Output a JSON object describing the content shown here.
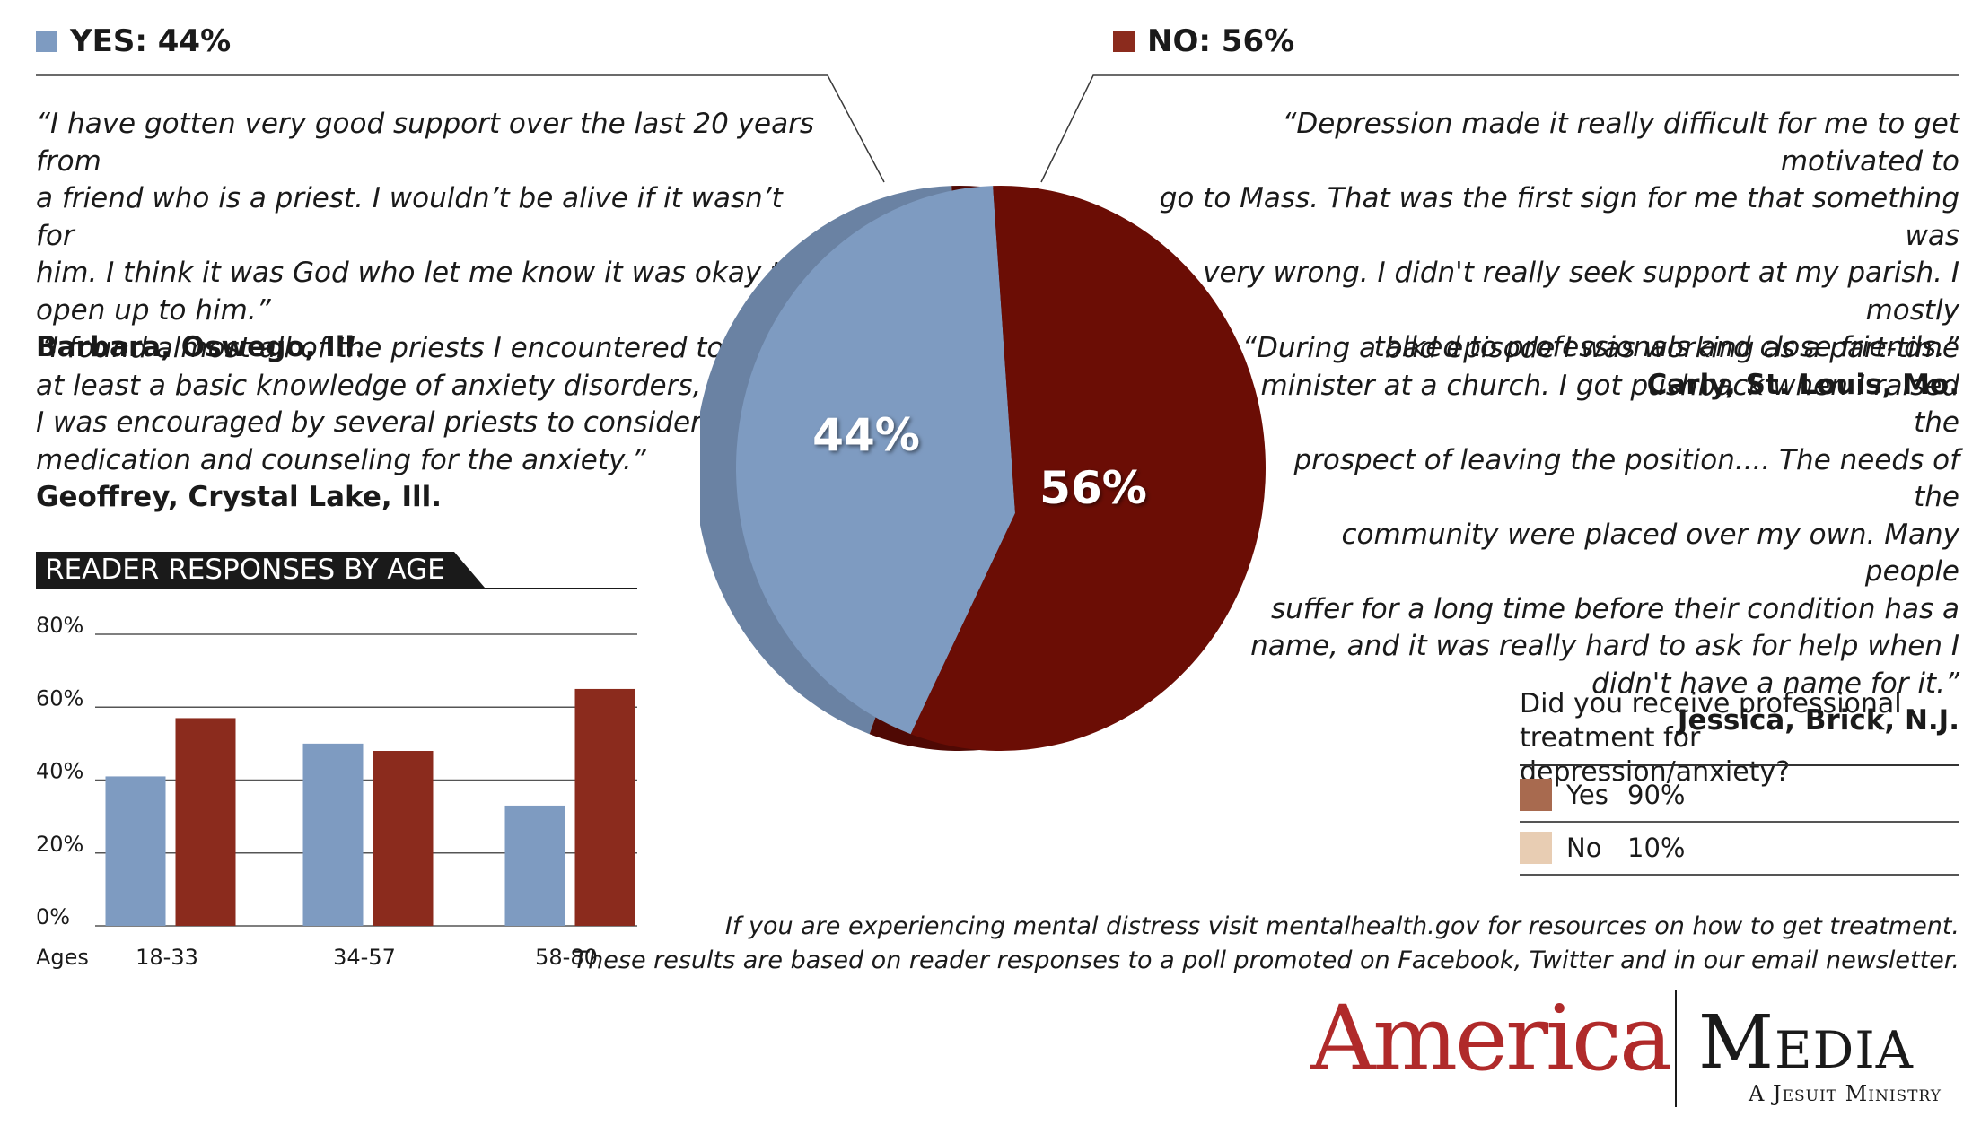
{
  "legend": {
    "yes": {
      "label": "YES: 44%",
      "color": "#7e9bc1"
    },
    "no": {
      "label": "NO: 56%",
      "color": "#8b2b1d"
    }
  },
  "quotes": [
    {
      "lines": [
        "“I have gotten very good support over the last 20 years from",
        "a friend who is a priest. I wouldn’t be alive if it wasn’t for",
        "him. I think it was God who let me know it was okay to",
        "open up to him.”"
      ],
      "author": "Barbara, Oswego, Ill."
    },
    {
      "lines": [
        "“I found almost all of the priests I encountered to have",
        "at least a basic knowledge of anxiety disorders, and",
        "I was encouraged by several priests to consider",
        "medication and counseling for the anxiety.”"
      ],
      "author": "Geoffrey, Crystal Lake, Ill."
    },
    {
      "lines": [
        "“Depression made it really difficult for me to get motivated to",
        "go to Mass. That was the first sign for me that something was",
        "very wrong. I didn't really seek support at my parish. I mostly",
        "talked to professionals and close friends.”"
      ],
      "author": "Carly, St. Louis, Mo."
    },
    {
      "lines": [
        "“During a bad episode I was working as a part-time",
        "minister at a church. I got pushback when I raised the",
        "prospect of leaving the position.... The needs of the",
        "community were placed over my own. Many people",
        "suffer for a long time before their condition has a",
        "name, and it was really hard to ask for help when I",
        "didn't have a name for it.”"
      ],
      "author": "Jessica, Brick, N.J."
    }
  ],
  "chart_data": [
    {
      "type": "pie",
      "labels": [
        "YES",
        "NO"
      ],
      "values": [
        44,
        56
      ],
      "value_labels": [
        "44%",
        "56%"
      ],
      "colors": [
        "#7e9bc1",
        "#6b0d05"
      ]
    },
    {
      "type": "bar",
      "title": "READER RESPONSES BY AGE",
      "xlabel": "Ages",
      "categories": [
        "18-33",
        "34-57",
        "58-80"
      ],
      "series": [
        {
          "values": [
            41,
            50,
            33
          ],
          "color": "#7e9bc1"
        },
        {
          "values": [
            57,
            48,
            65
          ],
          "color": "#8b2b1d"
        }
      ],
      "ylim": [
        0,
        80
      ],
      "yticks": [
        0,
        20,
        40,
        60,
        80
      ],
      "ytick_labels": [
        "0%",
        "20%",
        "40%",
        "60%",
        "80%"
      ],
      "grid": true
    }
  ],
  "professional": {
    "question_line1": "Did you receive professional",
    "question_line2": "treatment for depression/anxiety?",
    "rows": [
      {
        "label": "Yes",
        "value": "90%",
        "color": "#a86a4f"
      },
      {
        "label": "No",
        "value": "10%",
        "color": "#e8cdb3"
      }
    ]
  },
  "footer": {
    "line1": "If you are experiencing mental distress visit mentalhealth.gov for resources on how to get treatment.",
    "line2": "These results are based on reader responses to a poll promoted on Facebook, Twitter and in our email newsletter."
  },
  "brand": {
    "america": "America",
    "media": "Media",
    "tagline": "A Jesuit Ministry"
  }
}
